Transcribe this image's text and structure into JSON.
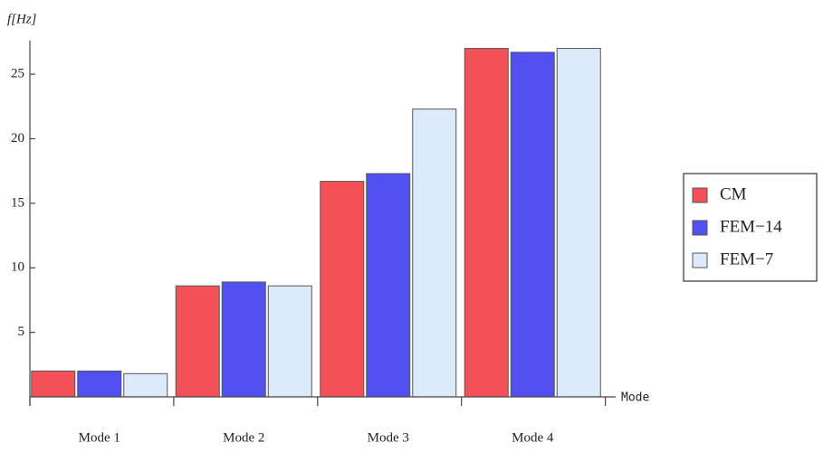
{
  "chart_data": {
    "type": "bar",
    "y_label": "f[Hz]",
    "x_label": "Mode",
    "categories": [
      "Mode 1",
      "Mode 2",
      "Mode 3",
      "Mode 4"
    ],
    "series": [
      {
        "name": "CM",
        "color": "#f35157",
        "values": [
          2.0,
          8.6,
          16.7,
          27.0
        ]
      },
      {
        "name": "FEM−14",
        "color": "#5151f2",
        "values": [
          2.0,
          8.9,
          17.3,
          26.7
        ]
      },
      {
        "name": "FEM−7",
        "color": "#dcebfb",
        "values": [
          1.8,
          8.6,
          22.3,
          27.0
        ]
      }
    ],
    "ylim": [
      0,
      27.6
    ],
    "yticks": [
      5,
      10,
      15,
      20,
      25
    ]
  }
}
